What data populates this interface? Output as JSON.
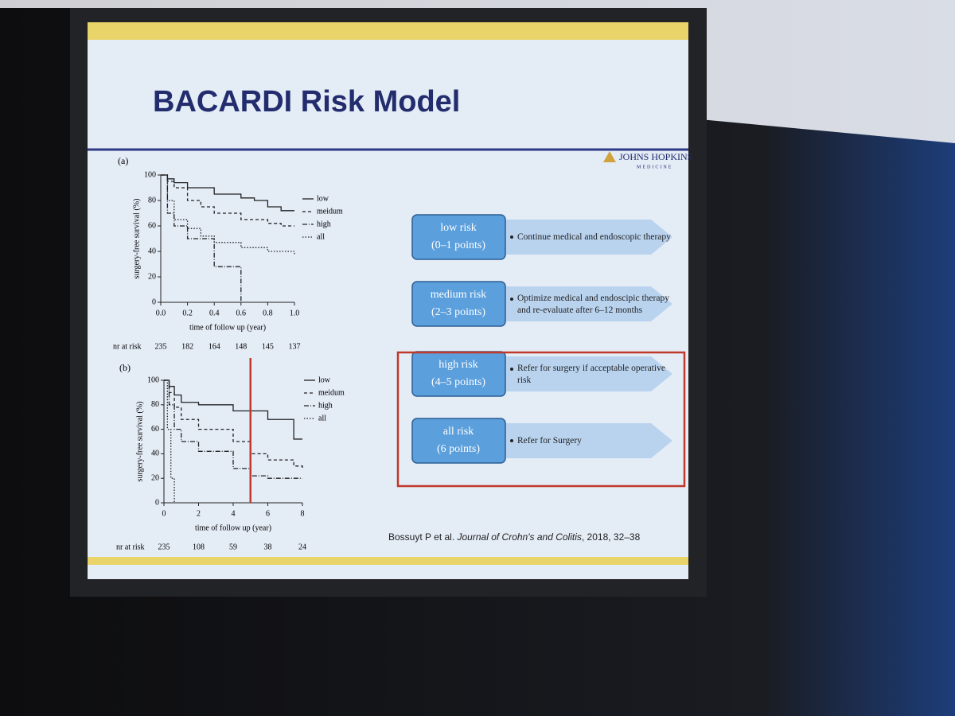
{
  "slide": {
    "title": "BACARDI Risk Model",
    "logo": "JOHNS HOPKINS",
    "logo_sub": "MEDICINE",
    "citation": {
      "authors": "Bossuyt P et al.",
      "journal": "Journal of Crohn's and Colitis",
      "details": ", 2018, 32–38"
    }
  },
  "chart_data": [
    {
      "type": "line",
      "panel": "(a)",
      "y_label": "surgery-free survival (%)",
      "x_label": "time of follow up (year)",
      "xlim": [
        0,
        1
      ],
      "xticks": [
        {
          "value": 0,
          "label": "0.0"
        },
        0.2,
        0.4,
        0.6,
        0.8,
        {
          "value": 1,
          "label": "1.0"
        }
      ],
      "ylim": [
        0,
        100
      ],
      "yticks": [
        0,
        20,
        40,
        60,
        80,
        100
      ],
      "series": [
        {
          "name": "low",
          "color": "#222222",
          "x": [
            0,
            0.05,
            0.1,
            0.2,
            0.4,
            0.6,
            0.7,
            0.8,
            0.9,
            1.0
          ],
          "values": [
            100,
            97,
            94,
            90,
            85,
            82,
            80,
            75,
            72,
            72
          ]
        },
        {
          "name": "meidum",
          "color": "#222222",
          "x": [
            0,
            0.05,
            0.1,
            0.2,
            0.3,
            0.4,
            0.6,
            0.8,
            0.9,
            1.0
          ],
          "values": [
            100,
            95,
            90,
            80,
            75,
            70,
            65,
            62,
            60,
            60
          ]
        },
        {
          "name": "high",
          "color": "#222222",
          "x": [
            0,
            0.05,
            0.1,
            0.2,
            0.4,
            0.42,
            0.6
          ],
          "values": [
            100,
            70,
            60,
            50,
            28,
            28,
            0
          ]
        },
        {
          "name": "all",
          "color": "#222222",
          "x": [
            0,
            0.05,
            0.1,
            0.2,
            0.3,
            0.4,
            0.6,
            0.8,
            1.0
          ],
          "values": [
            100,
            80,
            65,
            58,
            52,
            47,
            43,
            40,
            38
          ]
        }
      ],
      "risk_label": "nr at risk",
      "risk_counts": [
        235,
        182,
        164,
        148,
        145,
        137
      ]
    },
    {
      "type": "line",
      "panel": "(b)",
      "y_label": "surgery-free survival (%)",
      "x_label": "time of follow up (year)",
      "xlim": [
        0,
        8
      ],
      "xticks": [
        0,
        2,
        4,
        6,
        8
      ],
      "ylim": [
        0,
        100
      ],
      "yticks": [
        0,
        20,
        40,
        60,
        80,
        100
      ],
      "highlight_x": 5,
      "highlight_color": "#c0392b",
      "series": [
        {
          "name": "low",
          "color": "#222222",
          "x": [
            0,
            0.3,
            0.6,
            1,
            2,
            4,
            5,
            6,
            7,
            7.5,
            8
          ],
          "values": [
            100,
            95,
            88,
            82,
            80,
            75,
            75,
            68,
            68,
            52,
            52
          ]
        },
        {
          "name": "meidum",
          "color": "#222222",
          "x": [
            0,
            0.3,
            0.6,
            1,
            2,
            4,
            5,
            6,
            7,
            7.5,
            8
          ],
          "values": [
            100,
            90,
            78,
            68,
            60,
            50,
            40,
            35,
            35,
            30,
            28
          ]
        },
        {
          "name": "high",
          "color": "#222222",
          "x": [
            0,
            0.3,
            0.6,
            1,
            2,
            4,
            5,
            6,
            7,
            7.5,
            8
          ],
          "values": [
            100,
            80,
            60,
            50,
            42,
            28,
            22,
            20,
            20,
            20,
            20
          ]
        },
        {
          "name": "all",
          "color": "#222222",
          "x": [
            0,
            0.2,
            0.4,
            0.6
          ],
          "values": [
            100,
            60,
            20,
            0
          ]
        }
      ],
      "risk_label": "nr at risk",
      "risk_counts": [
        235,
        108,
        59,
        38,
        24
      ]
    }
  ],
  "risk_table": {
    "highlight_color": "#c0392b",
    "rows": [
      {
        "label": "low risk",
        "points": "(0–1 points)",
        "action": "Continue medical and endoscopic therapy"
      },
      {
        "label": "medium risk",
        "points": "(2–3 points)",
        "action": "Optimize medical and endoscipic therapy and re-evaluate after 6–12 months"
      },
      {
        "label": "high risk",
        "points": "(4–5 points)",
        "action": "Refer for surgery if acceptable operative risk"
      },
      {
        "label": "all risk",
        "points": "(6 points)",
        "action": "Refer for Surgery"
      }
    ]
  }
}
